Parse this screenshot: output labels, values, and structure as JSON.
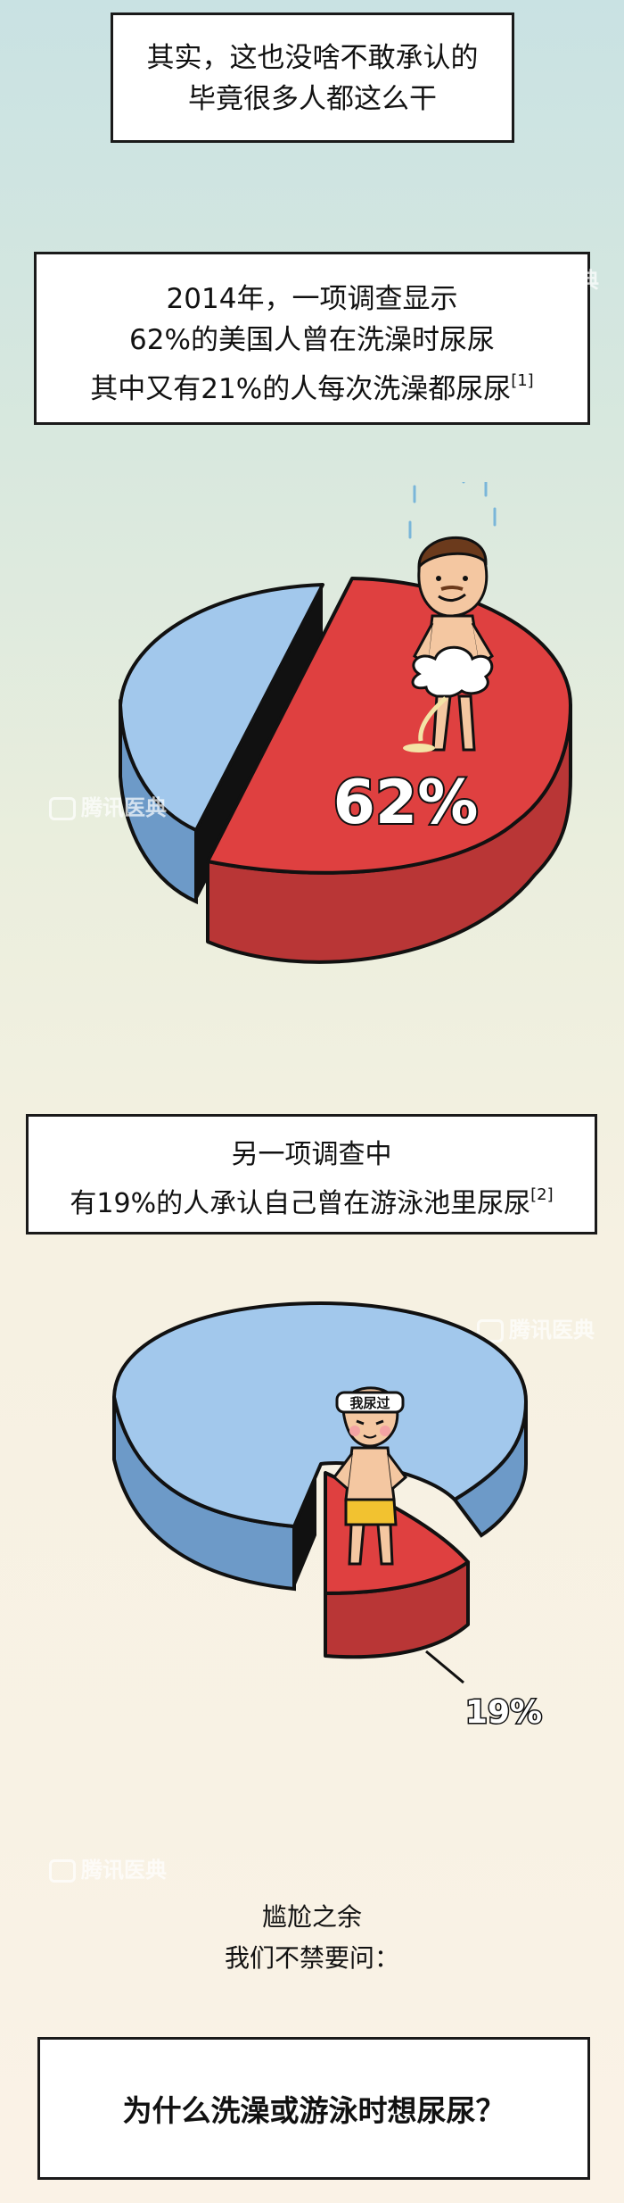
{
  "intro": {
    "line1": "其实，这也没啥不敢承认的",
    "line2": "毕竟很多人都这么干"
  },
  "survey1": {
    "line1": "2014年，一项调查显示",
    "line2": "62%的美国人曾在洗澡时尿尿",
    "line3": "其中又有21%的人每次洗澡都尿尿",
    "ref": "[1]"
  },
  "chart_data": [
    {
      "type": "pie",
      "values": [
        62,
        38
      ],
      "highlight_label": "62%",
      "colors": {
        "highlight": "#df4040",
        "rest": "#a2c8ec"
      }
    },
    {
      "type": "pie",
      "values": [
        19,
        81
      ],
      "highlight_label": "19%",
      "colors": {
        "highlight": "#df4040",
        "rest": "#a2c8ec"
      }
    }
  ],
  "survey2": {
    "line1": "另一项调查中",
    "line2": "有19%的人承认自己曾在游泳池里尿尿",
    "ref": "[2]"
  },
  "headband_text": "我尿过",
  "closing": {
    "line1": "尴尬之余",
    "line2": "我们不禁要问："
  },
  "question": "为什么洗澡或游泳时想尿尿？",
  "watermark": "腾讯医典"
}
